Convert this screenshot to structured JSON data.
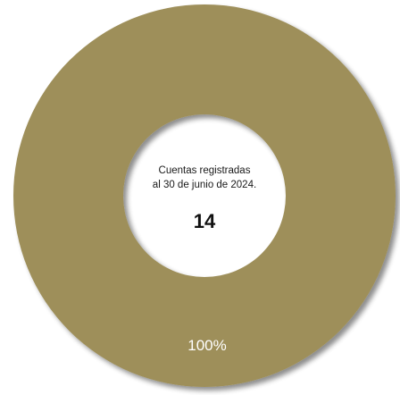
{
  "chart_data": {
    "type": "pie",
    "variant": "donut",
    "slices": [
      {
        "value": 100,
        "label": "100%",
        "color": "#9e8f5a"
      }
    ],
    "center": {
      "caption_line1": "Cuentas registradas",
      "caption_line2": "al 30 de junio de 2024.",
      "value": "14"
    }
  },
  "colors": {
    "ring": "#9e8f5a",
    "ring_shadow": "#6e6440",
    "background": "#ffffff"
  }
}
